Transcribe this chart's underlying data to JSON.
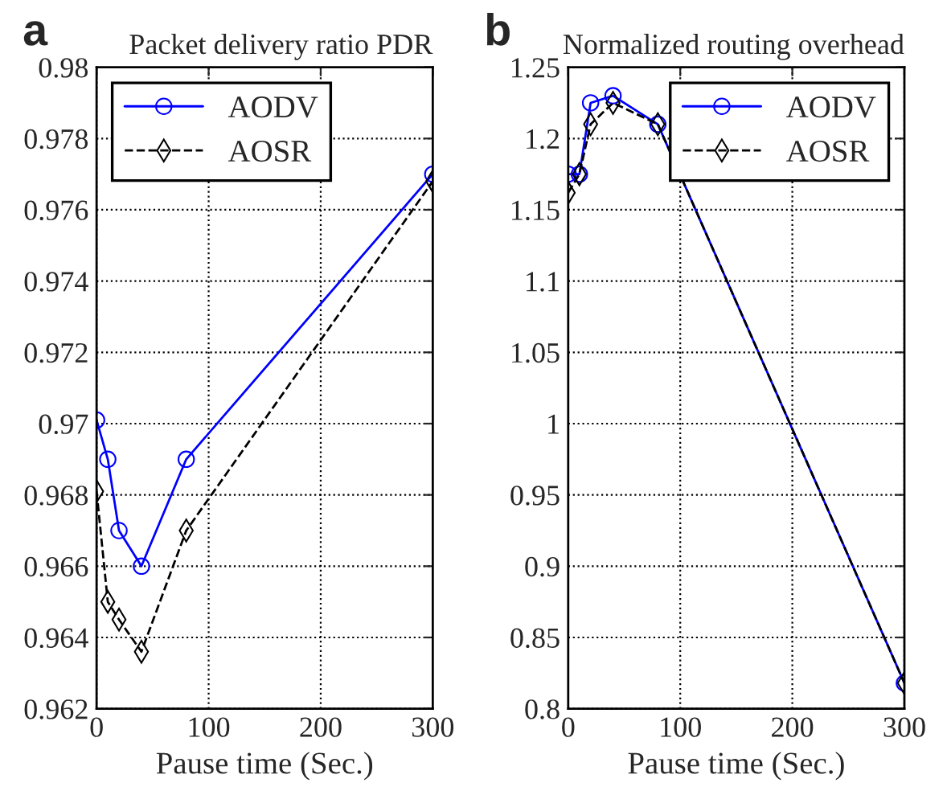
{
  "chart_data": [
    {
      "type": "line",
      "title": "Packet delivery ratio PDR",
      "xlabel": "Pause time (Sec.)",
      "annotations": [
        "a"
      ],
      "x": [
        0,
        10,
        20,
        40,
        80,
        300
      ],
      "series": [
        {
          "name": "AODV",
          "color": "#0000ff",
          "marker": "circle",
          "line_style": "solid",
          "values": [
            0.9701,
            0.969,
            0.967,
            0.966,
            0.969,
            0.977
          ]
        },
        {
          "name": "AOSR",
          "color": "#000000",
          "marker": "diamond",
          "line_style": "dashed",
          "values": [
            0.9681,
            0.965,
            0.9645,
            0.9636,
            0.967,
            0.9768
          ]
        }
      ],
      "xlim": [
        0,
        300
      ],
      "xticks": [
        0,
        100,
        200,
        300
      ],
      "ylim": [
        0.962,
        0.98
      ],
      "yticks": [
        0.962,
        0.964,
        0.966,
        0.968,
        0.97,
        0.972,
        0.974,
        0.976,
        0.978,
        0.98
      ],
      "grid": true,
      "legend": "top left"
    },
    {
      "type": "line",
      "title": "Normalized routing overhead",
      "xlabel": "Pause time (Sec.)",
      "annotations": [
        "b"
      ],
      "x": [
        0,
        10,
        20,
        40,
        80,
        300
      ],
      "series": [
        {
          "name": "AODV",
          "color": "#0000ff",
          "marker": "circle",
          "line_style": "solid",
          "values": [
            1.175,
            1.175,
            1.225,
            1.23,
            1.21,
            0.818
          ]
        },
        {
          "name": "AOSR",
          "color": "#000000",
          "marker": "diamond",
          "line_style": "dashed",
          "values": [
            1.162,
            1.175,
            1.21,
            1.225,
            1.21,
            0.818
          ]
        }
      ],
      "xlim": [
        0,
        300
      ],
      "xticks": [
        0,
        100,
        200,
        300
      ],
      "ylim": [
        0.8,
        1.25
      ],
      "yticks": [
        0.8,
        0.85,
        0.9,
        0.95,
        1,
        1.05,
        1.1,
        1.15,
        1.2,
        1.25
      ],
      "grid": true,
      "legend": "top right"
    }
  ]
}
